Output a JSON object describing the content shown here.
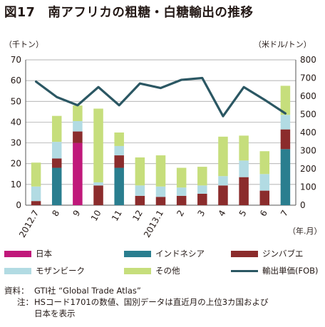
{
  "title": {
    "number": "図17",
    "text": "南アフリカの粗糖・白糖輸出の推移"
  },
  "chart_data": {
    "type": "bar",
    "stacked": true,
    "secondary_type": "line",
    "categories": [
      "2012.7",
      "8",
      "9",
      "10",
      "11",
      "12",
      "2013.1",
      "2",
      "3",
      "4",
      "5",
      "6",
      "7"
    ],
    "ylabel": "（千トン）",
    "y2label": "（米ドル/トン）",
    "xlabel": "（年.月）",
    "ylim": [
      0,
      70
    ],
    "y2lim": [
      0,
      800
    ],
    "yticks": [
      "0",
      "10",
      "20",
      "30",
      "40",
      "50",
      "60",
      "70"
    ],
    "y2ticks": [
      "0",
      "100",
      "200",
      "300",
      "400",
      "500",
      "600",
      "700",
      "800"
    ],
    "grid": true,
    "legend_position": "bottom",
    "series": [
      {
        "name": "日本",
        "color": "#c0187a",
        "values": [
          0,
          0,
          30,
          0,
          0,
          0,
          0,
          0,
          0,
          0,
          0,
          0,
          0
        ]
      },
      {
        "name": "インドネシア",
        "color": "#2a7e8f",
        "values": [
          0,
          18,
          0,
          0,
          18,
          0,
          0,
          0,
          0,
          0,
          0,
          0,
          27
        ]
      },
      {
        "name": "ジンバブエ",
        "color": "#8b2c2c",
        "values": [
          2,
          4.5,
          5.5,
          9.5,
          6,
          4.5,
          4,
          4.5,
          5.5,
          9.5,
          13.5,
          7,
          9.5
        ]
      },
      {
        "name": "モザンビーク",
        "color": "#b2dbe3",
        "values": [
          7,
          8,
          5,
          1.5,
          4.5,
          5,
          5,
          4,
          4,
          4.5,
          8,
          8,
          7
        ]
      },
      {
        "name": "その他",
        "color": "#c6de7c",
        "values": [
          11.5,
          12.5,
          7.5,
          35.5,
          6.5,
          13.5,
          15,
          9.5,
          9,
          19,
          12,
          11,
          14
        ]
      }
    ],
    "line_series": {
      "name": "輸出単価(FOB)",
      "color": "#2b5763",
      "axis": "right",
      "values": [
        680,
        595,
        550,
        650,
        550,
        670,
        645,
        690,
        700,
        490,
        650,
        580,
        505
      ]
    }
  },
  "legend": [
    {
      "label": "日本",
      "color": "#c0187a",
      "kind": "bar"
    },
    {
      "label": "インドネシア",
      "color": "#2a7e8f",
      "kind": "bar"
    },
    {
      "label": "ジンバブエ",
      "color": "#8b2c2c",
      "kind": "bar"
    },
    {
      "label": "モザンビーク",
      "color": "#b2dbe3",
      "kind": "bar"
    },
    {
      "label": "その他",
      "color": "#c6de7c",
      "kind": "bar"
    },
    {
      "label": "輸出単価(FOB)",
      "color": "#2b5763",
      "kind": "line"
    }
  ],
  "notes": {
    "source_label": "資料：",
    "source_text": "GTI社 “Global Trade Atlas”",
    "note_label": "注：",
    "note_line1": "HSコード1701の数値、国別データは直近月の上位3カ国および",
    "note_line2": "日本を表示"
  }
}
